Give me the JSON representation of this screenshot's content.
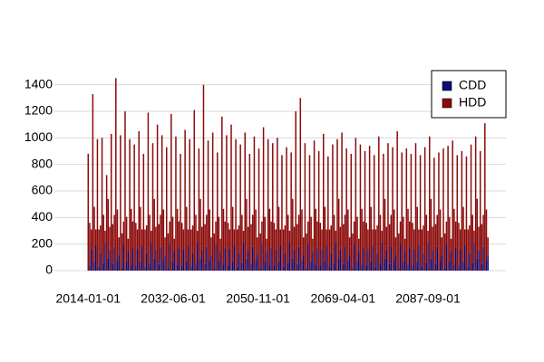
{
  "chart_data": {
    "type": "bar",
    "stacked": true,
    "x": [
      "2014-01-01",
      "2014-05-01",
      "2014-09-01",
      "2015-01-01",
      "2015-05-01",
      "2015-09-01",
      "2016-01-01",
      "2016-05-01",
      "2016-09-01",
      "2017-01-01",
      "2017-05-01",
      "2017-09-01",
      "2018-01-01",
      "2018-05-01",
      "2018-09-01",
      "2019-01-01",
      "2019-05-01",
      "2019-09-01",
      "2020-01-01",
      "2020-05-01",
      "2020-09-01",
      "2021-01-01",
      "2021-05-01",
      "2021-09-01",
      "2022-01-01",
      "2022-05-01",
      "2022-09-01",
      "2023-01-01",
      "2023-05-01",
      "2023-09-01",
      "2024-01-01",
      "2024-05-01",
      "2024-09-01",
      "2025-01-01",
      "2025-05-01",
      "2025-09-01",
      "2026-01-01",
      "2026-05-01",
      "2026-09-01",
      "2027-01-01",
      "2027-05-01",
      "2027-09-01",
      "2028-01-01",
      "2028-05-01",
      "2028-09-01",
      "2029-01-01",
      "2029-05-01",
      "2029-09-01",
      "2030-01-01",
      "2030-05-01",
      "2030-09-01",
      "2031-01-01",
      "2031-05-01",
      "2031-09-01",
      "2032-01-01",
      "2032-05-01",
      "2032-09-01",
      "2033-01-01",
      "2033-05-01",
      "2033-09-01",
      "2034-01-01",
      "2034-05-01",
      "2034-09-01",
      "2035-01-01",
      "2035-05-01",
      "2035-09-01",
      "2036-01-01",
      "2036-05-01",
      "2036-09-01",
      "2037-01-01",
      "2037-05-01",
      "2037-09-01",
      "2038-01-01",
      "2038-05-01",
      "2038-09-01",
      "2039-01-01",
      "2039-05-01",
      "2039-09-01",
      "2040-01-01",
      "2040-05-01",
      "2040-09-01",
      "2041-01-01",
      "2041-05-01",
      "2041-09-01",
      "2042-01-01",
      "2042-05-01",
      "2042-09-01",
      "2043-01-01",
      "2043-05-01",
      "2043-09-01",
      "2044-01-01",
      "2044-05-01",
      "2044-09-01",
      "2045-01-01",
      "2045-05-01",
      "2045-09-01",
      "2046-01-01",
      "2046-05-01",
      "2046-09-01",
      "2047-01-01",
      "2047-05-01",
      "2047-09-01",
      "2048-01-01",
      "2048-05-01",
      "2048-09-01",
      "2049-01-01",
      "2049-05-01",
      "2049-09-01",
      "2050-01-01",
      "2050-05-01",
      "2050-09-01",
      "2051-01-01",
      "2051-05-01",
      "2051-09-01",
      "2052-01-01",
      "2052-05-01",
      "2052-09-01",
      "2053-01-01",
      "2053-05-01",
      "2053-09-01",
      "2054-01-01",
      "2054-05-01",
      "2054-09-01",
      "2055-01-01",
      "2055-05-01",
      "2055-09-01",
      "2056-01-01",
      "2056-05-01",
      "2056-09-01",
      "2057-01-01",
      "2057-05-01",
      "2057-09-01",
      "2058-01-01",
      "2058-05-01",
      "2058-09-01",
      "2059-01-01",
      "2059-05-01",
      "2059-09-01",
      "2060-01-01",
      "2060-05-01",
      "2060-09-01",
      "2061-01-01",
      "2061-05-01",
      "2061-09-01",
      "2062-01-01",
      "2062-05-01",
      "2062-09-01",
      "2063-01-01",
      "2063-05-01",
      "2063-09-01",
      "2064-01-01",
      "2064-05-01",
      "2064-09-01",
      "2065-01-01",
      "2065-05-01",
      "2065-09-01",
      "2066-01-01",
      "2066-05-01",
      "2066-09-01",
      "2067-01-01",
      "2067-05-01",
      "2067-09-01",
      "2068-01-01",
      "2068-05-01",
      "2068-09-01",
      "2069-01-01",
      "2069-05-01",
      "2069-09-01",
      "2070-01-01",
      "2070-05-01",
      "2070-09-01",
      "2071-01-01",
      "2071-05-01",
      "2071-09-01",
      "2072-01-01",
      "2072-05-01",
      "2072-09-01",
      "2073-01-01",
      "2073-05-01",
      "2073-09-01",
      "2074-01-01",
      "2074-05-01",
      "2074-09-01",
      "2075-01-01",
      "2075-05-01",
      "2075-09-01",
      "2076-01-01",
      "2076-05-01",
      "2076-09-01",
      "2077-01-01",
      "2077-05-01",
      "2077-09-01",
      "2078-01-01",
      "2078-05-01",
      "2078-09-01",
      "2079-01-01",
      "2079-05-01",
      "2079-09-01",
      "2080-01-01",
      "2080-05-01",
      "2080-09-01",
      "2081-01-01",
      "2081-05-01",
      "2081-09-01",
      "2082-01-01",
      "2082-05-01",
      "2082-09-01",
      "2083-01-01",
      "2083-05-01",
      "2083-09-01",
      "2084-01-01",
      "2084-05-01",
      "2084-09-01",
      "2085-01-01",
      "2085-05-01",
      "2085-09-01",
      "2086-01-01",
      "2086-05-01",
      "2086-09-01",
      "2087-01-01",
      "2087-05-01",
      "2087-09-01",
      "2088-01-01",
      "2088-05-01",
      "2088-09-01",
      "2089-01-01",
      "2089-05-01",
      "2089-09-01",
      "2090-01-01",
      "2090-05-01",
      "2090-09-01",
      "2091-01-01",
      "2091-05-01",
      "2091-09-01",
      "2092-01-01",
      "2092-05-01",
      "2092-09-01",
      "2093-01-01",
      "2093-05-01",
      "2093-09-01",
      "2094-01-01",
      "2094-05-01",
      "2094-09-01",
      "2095-01-01",
      "2095-05-01",
      "2095-09-01",
      "2096-01-01",
      "2096-05-01",
      "2096-09-01",
      "2097-01-01",
      "2097-05-01",
      "2097-09-01",
      "2098-01-01",
      "2098-05-01",
      "2098-09-01",
      "2099-01-01",
      "2099-05-01",
      "2099-09-01",
      "2100-01-01",
      "2100-05-01",
      "2100-09-01"
    ],
    "series": [
      {
        "name": "CDD",
        "color": "#0a0a78",
        "values": [
          0,
          40,
          160,
          0,
          70,
          190,
          0,
          30,
          130,
          0,
          60,
          210,
          0,
          90,
          150,
          0,
          50,
          180,
          0,
          80,
          120,
          0,
          20,
          200,
          0,
          65,
          140,
          0,
          45,
          170,
          0,
          40,
          160,
          0,
          70,
          190,
          0,
          30,
          130,
          0,
          60,
          210,
          0,
          90,
          150,
          0,
          50,
          180,
          0,
          80,
          120,
          0,
          20,
          200,
          0,
          65,
          140,
          0,
          45,
          170,
          0,
          40,
          160,
          0,
          70,
          190,
          0,
          30,
          130,
          0,
          60,
          210,
          0,
          90,
          150,
          0,
          50,
          180,
          0,
          80,
          120,
          0,
          20,
          200,
          0,
          65,
          140,
          0,
          45,
          170,
          0,
          40,
          160,
          0,
          70,
          190,
          0,
          30,
          130,
          0,
          60,
          210,
          0,
          90,
          150,
          0,
          50,
          180,
          0,
          80,
          120,
          0,
          20,
          200,
          0,
          65,
          140,
          0,
          45,
          170,
          0,
          40,
          160,
          0,
          70,
          190,
          0,
          30,
          130,
          0,
          60,
          210,
          0,
          90,
          150,
          0,
          50,
          180,
          0,
          80,
          120,
          0,
          20,
          200,
          0,
          65,
          140,
          0,
          45,
          170,
          0,
          40,
          160,
          0,
          70,
          190,
          0,
          30,
          130,
          0,
          60,
          210,
          0,
          90,
          150,
          0,
          50,
          180,
          0,
          80,
          120,
          0,
          20,
          200,
          0,
          65,
          140,
          0,
          45,
          170,
          0,
          40,
          160,
          0,
          70,
          190,
          0,
          30,
          130,
          0,
          60,
          210,
          0,
          90,
          150,
          0,
          50,
          180,
          0,
          80,
          120,
          0,
          20,
          200,
          0,
          65,
          140,
          0,
          45,
          170,
          0,
          40,
          160,
          0,
          70,
          190,
          0,
          30,
          130,
          0,
          60,
          210,
          0,
          90,
          150,
          0,
          50,
          180,
          0,
          80,
          120,
          0,
          20,
          200,
          0,
          65,
          140,
          0,
          45,
          170,
          0,
          40,
          160,
          0,
          70,
          190,
          0,
          30,
          130,
          0,
          60,
          210,
          0,
          90,
          150,
          0,
          50,
          180,
          0,
          80,
          120
        ]
      },
      {
        "name": "HDD",
        "color": "#8b0a0a",
        "values": [
          880,
          320,
          150,
          1330,
          410,
          120,
          990,
          280,
          210,
          1000,
          360,
          90,
          720,
          450,
          180,
          1030,
          300,
          240,
          1450,
          380,
          130,
          1020,
          260,
          170,
          1200,
          340,
          100,
          990,
          420,
          200,
          950,
          320,
          150,
          1050,
          410,
          120,
          880,
          280,
          210,
          1190,
          360,
          90,
          960,
          450,
          180,
          1100,
          300,
          240,
          1020,
          380,
          130,
          930,
          260,
          170,
          1180,
          340,
          100,
          1010,
          420,
          200,
          880,
          320,
          150,
          1060,
          410,
          120,
          990,
          280,
          210,
          1210,
          360,
          90,
          920,
          450,
          180,
          1400,
          300,
          240,
          980,
          380,
          130,
          1040,
          260,
          170,
          890,
          340,
          100,
          1160,
          420,
          200,
          1020,
          320,
          150,
          1100,
          410,
          120,
          990,
          280,
          210,
          950,
          360,
          90,
          1040,
          450,
          180,
          880,
          300,
          240,
          1010,
          380,
          130,
          920,
          260,
          170,
          1080,
          340,
          100,
          990,
          420,
          200,
          960,
          320,
          150,
          1000,
          410,
          120,
          870,
          280,
          210,
          930,
          360,
          90,
          890,
          450,
          180,
          1200,
          300,
          240,
          1300,
          380,
          130,
          960,
          260,
          170,
          870,
          340,
          100,
          980,
          420,
          200,
          900,
          320,
          150,
          1030,
          410,
          120,
          860,
          280,
          210,
          950,
          360,
          90,
          990,
          450,
          180,
          1040,
          300,
          240,
          920,
          380,
          130,
          880,
          260,
          170,
          1000,
          340,
          100,
          950,
          420,
          200,
          900,
          320,
          150,
          940,
          410,
          120,
          870,
          280,
          210,
          1010,
          360,
          90,
          880,
          450,
          180,
          960,
          300,
          240,
          930,
          380,
          130,
          1050,
          260,
          170,
          890,
          340,
          100,
          920,
          420,
          200,
          880,
          320,
          150,
          960,
          410,
          120,
          870,
          280,
          210,
          930,
          360,
          90,
          1010,
          450,
          180,
          850,
          300,
          240,
          890,
          380,
          130,
          920,
          260,
          170,
          940,
          340,
          100,
          980,
          420,
          200,
          870,
          320,
          150,
          900,
          410,
          120,
          860,
          280,
          210,
          950,
          360,
          90,
          1010,
          450,
          180,
          900,
          300,
          240,
          1110,
          380,
          130
        ]
      }
    ],
    "xlim": [
      "2013-10-01",
      "2101-06-01"
    ],
    "xticks": [
      "2014-01-01",
      "2032-06-01",
      "2050-11-01",
      "2069-04-01",
      "2087-09-01"
    ],
    "ylim": [
      0,
      1500
    ],
    "yticks": [
      0,
      200,
      400,
      600,
      800,
      1000,
      1200,
      1400
    ],
    "grid": true,
    "legend": "top-right"
  }
}
